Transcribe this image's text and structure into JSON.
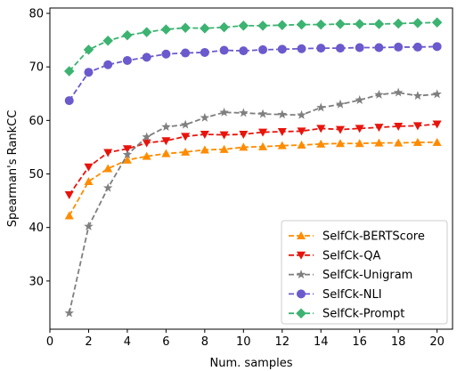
{
  "chart_data": {
    "type": "line",
    "title": "",
    "xlabel": "Num. samples",
    "ylabel": "Spearman's RankCC",
    "xlim": [
      0,
      20.8
    ],
    "ylim": [
      21,
      81
    ],
    "xticks": [
      0,
      2,
      4,
      6,
      8,
      10,
      12,
      14,
      16,
      18,
      20
    ],
    "yticks": [
      30,
      40,
      50,
      60,
      70,
      80
    ],
    "grid": false,
    "legend_position": "lower-right",
    "x": [
      1,
      2,
      3,
      4,
      5,
      6,
      7,
      8,
      9,
      10,
      11,
      12,
      13,
      14,
      15,
      16,
      17,
      18,
      19,
      20
    ],
    "series": [
      {
        "name": "SelfCk-BERTScore",
        "color": "#ff8c00",
        "marker": "triangle-up",
        "values": [
          42.2,
          48.6,
          51.0,
          52.6,
          53.3,
          53.8,
          54.1,
          54.5,
          54.6,
          55.0,
          55.1,
          55.3,
          55.4,
          55.6,
          55.7,
          55.7,
          55.8,
          55.8,
          55.9,
          55.9
        ]
      },
      {
        "name": "SelfCk-QA",
        "color": "#e8140c",
        "marker": "triangle-down",
        "values": [
          46.1,
          51.3,
          54.0,
          54.7,
          55.8,
          56.2,
          57.0,
          57.4,
          57.3,
          57.4,
          57.8,
          57.9,
          58.0,
          58.5,
          58.3,
          58.5,
          58.7,
          58.9,
          59.0,
          59.3
        ]
      },
      {
        "name": "SelfCk-Unigram",
        "color": "#7f7f7f",
        "marker": "star",
        "values": [
          24.0,
          40.2,
          47.4,
          53.6,
          56.9,
          58.8,
          59.2,
          60.5,
          61.5,
          61.4,
          61.2,
          61.1,
          61.0,
          62.4,
          63.0,
          63.8,
          64.8,
          65.2,
          64.6,
          64.9
        ]
      },
      {
        "name": "SelfCk-NLI",
        "color": "#6a5acd",
        "marker": "circle",
        "values": [
          63.7,
          69.0,
          70.4,
          71.2,
          71.8,
          72.4,
          72.6,
          72.7,
          73.1,
          73.0,
          73.2,
          73.3,
          73.4,
          73.5,
          73.5,
          73.6,
          73.6,
          73.7,
          73.7,
          73.8
        ]
      },
      {
        "name": "SelfCk-Prompt",
        "color": "#3cb371",
        "marker": "diamond",
        "values": [
          69.2,
          73.2,
          74.9,
          75.9,
          76.5,
          77.0,
          77.3,
          77.2,
          77.4,
          77.7,
          77.7,
          77.8,
          77.9,
          77.9,
          78.0,
          78.0,
          78.0,
          78.1,
          78.2,
          78.3
        ]
      }
    ]
  }
}
